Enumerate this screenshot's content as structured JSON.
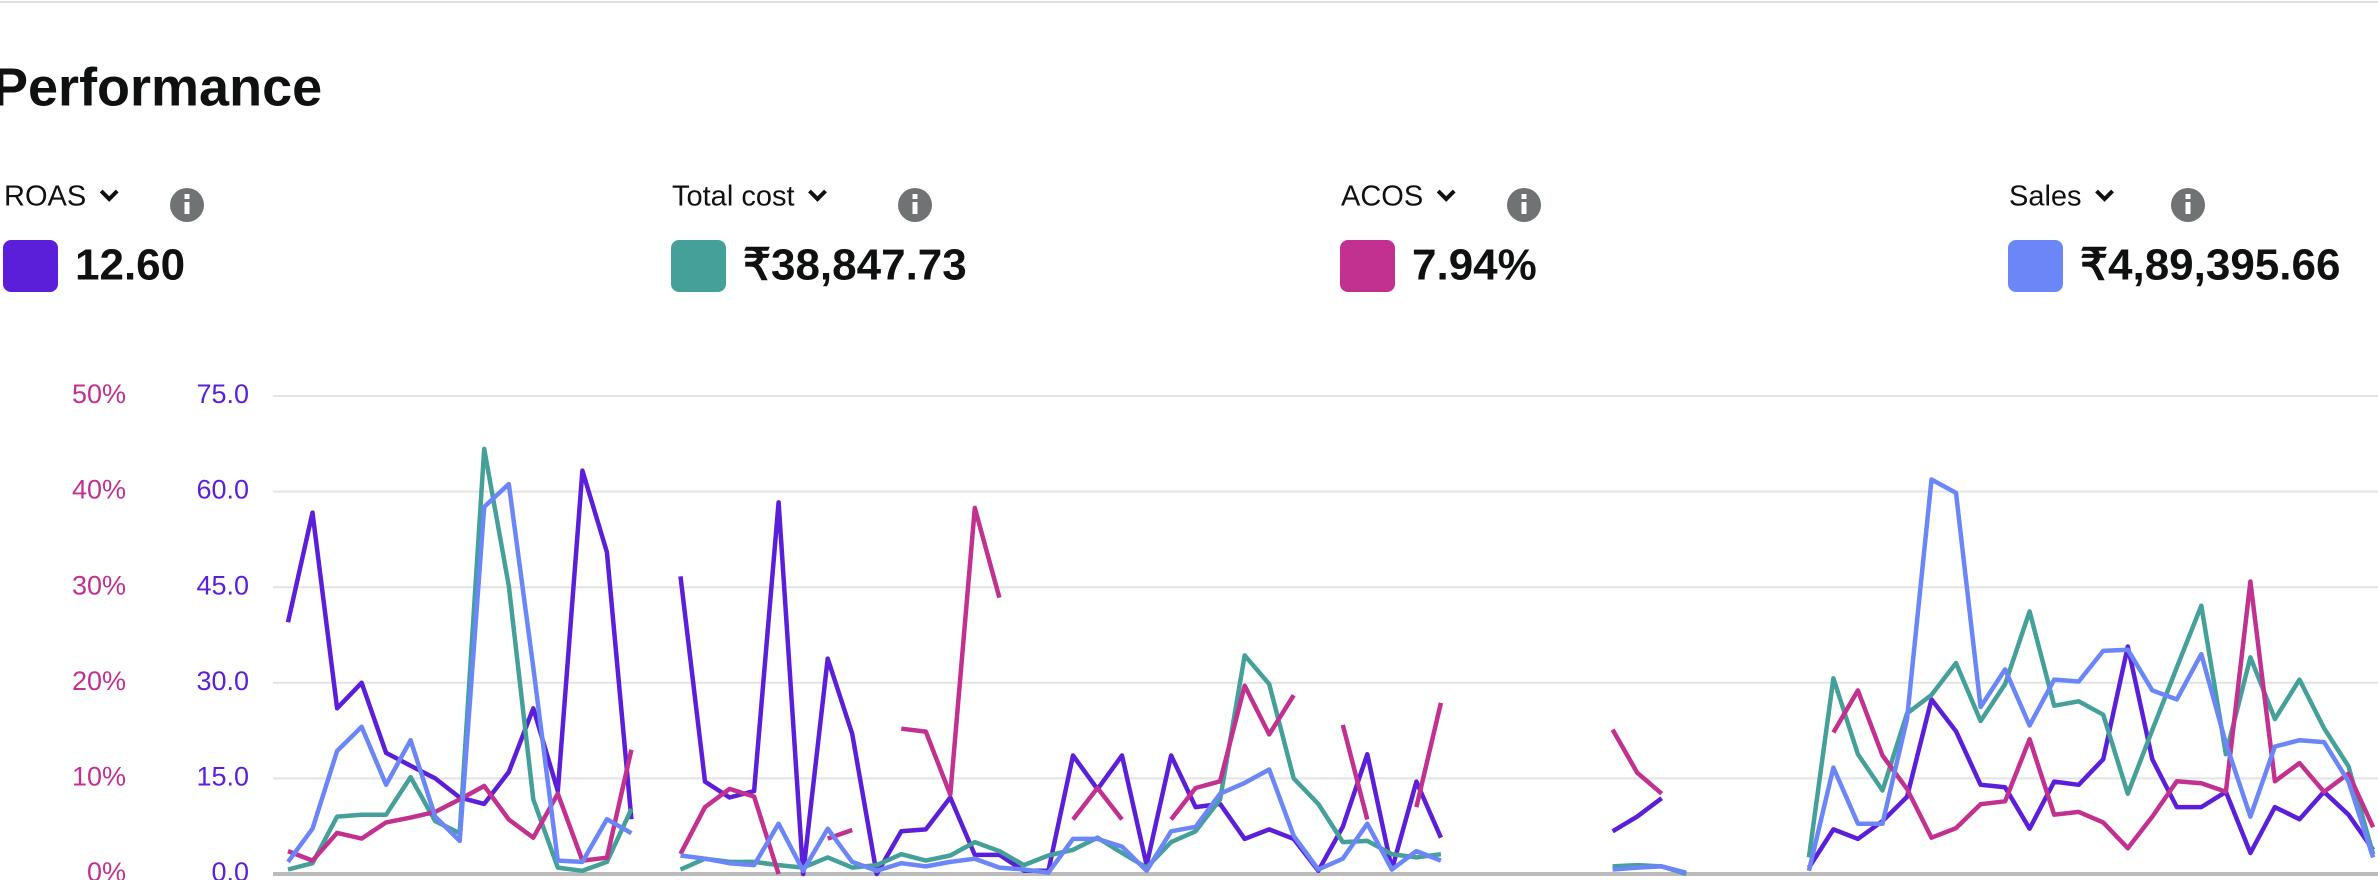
{
  "header": {
    "title": "Performance"
  },
  "metrics": [
    {
      "value": "12.60"
    },
    {
      "value": "₹38,847.73"
    },
    {
      "value": "7.94%"
    },
    {
      "value": "₹4,89,395.66"
    }
  ],
  "chart_data": {
    "type": "line",
    "categories": [
      null,
      null,
      null,
      null,
      null,
      null,
      null,
      null,
      null,
      null,
      null,
      null,
      null,
      null,
      null,
      null,
      null,
      null,
      null,
      null,
      null,
      null,
      null,
      null,
      null,
      null,
      null,
      null,
      null,
      null,
      null,
      null,
      null,
      null,
      null,
      null,
      null,
      null,
      null,
      null,
      null,
      null,
      null,
      null,
      null,
      null,
      null,
      null,
      null,
      null,
      null,
      null,
      null,
      null,
      null,
      null,
      null,
      null,
      null,
      null,
      null,
      null,
      null,
      null,
      null,
      null,
      null,
      null,
      null,
      null,
      null,
      null,
      null,
      null,
      null,
      null,
      null,
      null,
      null,
      null,
      null,
      null,
      null,
      null,
      null,
      null
    ],
    "ylim": [
      0,
      75
    ],
    "yticks": [
      {
        "value": 0,
        "label": "0.0"
      },
      {
        "value": 15,
        "label": "15.0"
      },
      {
        "value": 30,
        "label": "30.0"
      },
      {
        "value": 45,
        "label": "45.0"
      },
      {
        "value": 60,
        "label": "60.0"
      },
      {
        "value": 75,
        "label": "75.0"
      }
    ],
    "y2lim": [
      0,
      50
    ],
    "y2ticks": [
      {
        "value": 0,
        "label": "0%"
      },
      {
        "value": 10,
        "label": "10%"
      },
      {
        "value": 20,
        "label": "20%"
      },
      {
        "value": 30,
        "label": "30%"
      },
      {
        "value": 40,
        "label": "40%"
      },
      {
        "value": 50,
        "label": "50%"
      }
    ],
    "grid": true,
    "series": [
      {
        "name": "ROAS",
        "color": "#5b1fd9",
        "axis": "y",
        "values": [
          39.5,
          56.7,
          26,
          30,
          19,
          17,
          15,
          12,
          11,
          16,
          26,
          13,
          63.3,
          50.5,
          8.6,
          null,
          46.7,
          14.5,
          12,
          13,
          58.3,
          0,
          33.8,
          22,
          0,
          6.7,
          7,
          12,
          3,
          3,
          0.5,
          0.5,
          18.6,
          13.3,
          18.6,
          1.4,
          18.6,
          10.5,
          11,
          5.5,
          7,
          5.5,
          0.5,
          7.4,
          18.8,
          0.7,
          14.5,
          5.7,
          null,
          null,
          null,
          null,
          null,
          null,
          6.7,
          9,
          11.9,
          null,
          null,
          null,
          null,
          null,
          1,
          7,
          5.5,
          8.3,
          12.1,
          27.4,
          22.4,
          14,
          13.6,
          7.1,
          14.5,
          14,
          18,
          35.7,
          18,
          10.5,
          10.5,
          12.9,
          3.3,
          10.5,
          8.6,
          12.9,
          9.3,
          3.8
        ]
      },
      {
        "name": "Total cost",
        "color": "#45a09a",
        "axis": "y",
        "values": [
          0.7,
          1.7,
          9,
          9.3,
          9.3,
          15.2,
          8.3,
          6.4,
          66.7,
          45.2,
          11.7,
          1,
          0.5,
          1.9,
          10.2,
          null,
          0.7,
          2.4,
          1.9,
          1.9,
          1.4,
          1,
          2.6,
          1,
          1.4,
          3.1,
          2.1,
          2.9,
          5,
          3.6,
          1.4,
          2.9,
          3.8,
          5.7,
          3.3,
          1,
          5,
          6.7,
          11.7,
          34.3,
          29.8,
          15,
          11,
          5,
          5.2,
          3.1,
          2.6,
          3.1,
          null,
          null,
          null,
          null,
          null,
          null,
          1.2,
          1.4,
          1.2,
          0,
          null,
          null,
          null,
          null,
          2.6,
          30.7,
          18.8,
          13.1,
          25.2,
          28.1,
          33.1,
          24,
          29.8,
          41.2,
          26.4,
          27.1,
          25,
          12.6,
          22.6,
          32.4,
          42.1,
          18.8,
          34,
          24.3,
          30.5,
          22.9,
          16.9,
          3.1
        ]
      },
      {
        "name": "ACOS",
        "color": "#c2318f",
        "axis": "y2",
        "values": [
          2.4,
          1.4,
          4.3,
          3.7,
          5.4,
          5.9,
          6.5,
          7.8,
          9.2,
          5.7,
          3.8,
          8.4,
          1.4,
          1.7,
          13,
          null,
          2.1,
          7,
          8.9,
          8.1,
          0,
          null,
          3.7,
          4.6,
          null,
          15.2,
          14.9,
          8.3,
          38.3,
          28.9,
          null,
          null,
          5.7,
          9,
          5.7,
          null,
          5.7,
          9,
          9.7,
          19.7,
          14.6,
          18.7,
          null,
          15.6,
          5.7,
          null,
          7,
          17.9,
          null,
          null,
          null,
          null,
          null,
          null,
          15.1,
          10.6,
          8.4,
          null,
          null,
          null,
          null,
          null,
          null,
          14.8,
          19.2,
          12.4,
          8.9,
          3.8,
          4.8,
          7.3,
          7.6,
          14.1,
          6.2,
          6.5,
          5.4,
          2.7,
          6,
          9.7,
          9.5,
          8.6,
          30.6,
          9.7,
          11.6,
          8.6,
          10.5,
          4.9
        ]
      },
      {
        "name": "Sales",
        "color": "#6b86f7",
        "axis": "y",
        "values": [
          1.9,
          7.1,
          19.3,
          23.1,
          14,
          21,
          9,
          5.2,
          57.6,
          61.2,
          32.4,
          2.1,
          1.9,
          8.6,
          6.4,
          null,
          2.9,
          2.4,
          1.7,
          1.4,
          7.9,
          0.5,
          7.1,
          1.9,
          0.5,
          1.7,
          1.2,
          1.9,
          2.4,
          1,
          0.7,
          0.2,
          5.5,
          5.5,
          4.3,
          0.5,
          6.7,
          7.4,
          12.6,
          14.3,
          16.4,
          6,
          0.7,
          2.4,
          7.9,
          0.7,
          3.6,
          2.1,
          null,
          null,
          null,
          null,
          null,
          null,
          0.7,
          1,
          1.2,
          0.2,
          null,
          null,
          null,
          null,
          0.5,
          16.7,
          7.9,
          7.9,
          24.3,
          61.9,
          59.8,
          26.2,
          32.1,
          23.3,
          30.5,
          30.2,
          35,
          35.2,
          28.8,
          27.4,
          34.5,
          20.5,
          9,
          20,
          21,
          20.7,
          14.5,
          2.6
        ]
      }
    ]
  }
}
